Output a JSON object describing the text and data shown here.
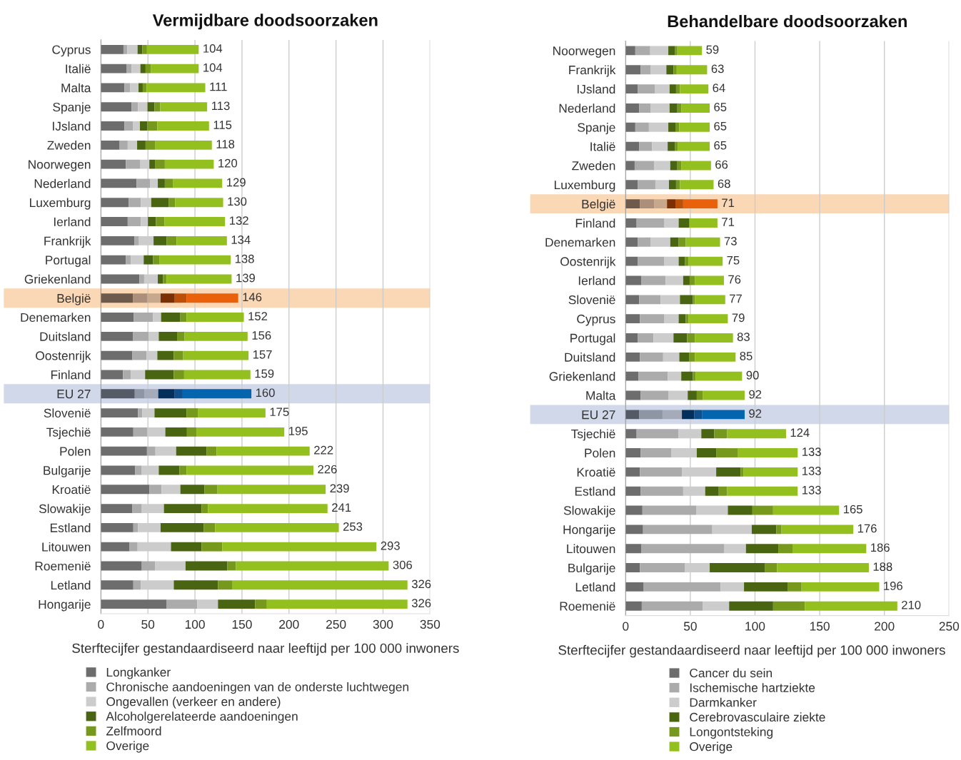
{
  "chart_data": [
    {
      "type": "bar",
      "orientation": "horizontal",
      "stacked": true,
      "title": "Vermijdbare doodsoorzaken",
      "xlabel": "Sterftecijfer gestandaardiseerd naar leeftijd per 100 000 inwoners",
      "categories": [
        "Cyprus",
        "Italië",
        "Malta",
        "Spanje",
        "IJsland",
        "Zweden",
        "Noorwegen",
        "Nederland",
        "Luxemburg",
        "Ierland",
        "Frankrijk",
        "Portugal",
        "Griekenland",
        "België",
        "Denemarken",
        "Duitsland",
        "Oostenrijk",
        "Finland",
        "EU 27",
        "Slovenië",
        "Tsjechië",
        "Polen",
        "Bulgarije",
        "Kroatië",
        "Slowakije",
        "Estland",
        "Litouwen",
        "Roemenië",
        "Letland",
        "Hongarije"
      ],
      "series": [
        {
          "name": "Longkanker",
          "colors": [
            "#6d6d6d",
            "#6d6d6d",
            "#6d6d6d",
            "#6d6d6d",
            "#6d6d6d",
            "#6d6d6d",
            "#6d6d6d",
            "#6d6d6d",
            "#6d6d6d",
            "#6d6d6d",
            "#6d6d6d",
            "#6d6d6d",
            "#6d6d6d",
            "#6e5a4c",
            "#6d6d6d",
            "#6d6d6d",
            "#6d6d6d",
            "#6d6d6d",
            "#545a66",
            "#6d6d6d",
            "#6d6d6d",
            "#6d6d6d",
            "#6d6d6d",
            "#6d6d6d",
            "#6d6d6d",
            "#6d6d6d",
            "#6d6d6d",
            "#6d6d6d",
            "#6d6d6d",
            "#6d6d6d"
          ],
          "values": [
            24,
            27.5,
            25,
            32.5,
            25,
            19.5,
            26.5,
            38,
            29.5,
            28.5,
            35.5,
            26.5,
            41,
            34,
            35,
            34,
            33.5,
            23.5,
            36,
            39.5,
            34.5,
            49,
            36.5,
            51.5,
            33.5,
            34.5,
            30.5,
            43.5,
            34.5,
            70
          ]
        },
        {
          "name": "Chronische aandoeningen van de onderste luchtwegen",
          "colors": [
            "#ababab",
            "#ababab",
            "#ababab",
            "#ababab",
            "#ababab",
            "#ababab",
            "#ababab",
            "#ababab",
            "#ababab",
            "#ababab",
            "#ababab",
            "#ababab",
            "#ababab",
            "#ab8f7a",
            "#ababab",
            "#ababab",
            "#ababab",
            "#ababab",
            "#8e95a3",
            "#ababab",
            "#ababab",
            "#ababab",
            "#ababab",
            "#ababab",
            "#ababab",
            "#ababab",
            "#ababab",
            "#ababab",
            "#ababab",
            "#ababab"
          ],
          "values": [
            4,
            5,
            6,
            7,
            9,
            9,
            15,
            14.5,
            13,
            14,
            5,
            5.5,
            5,
            15.5,
            20.5,
            17,
            15,
            8.5,
            10.5,
            4.5,
            15,
            9,
            7,
            13,
            10,
            5,
            8.5,
            14,
            8,
            32.5
          ]
        },
        {
          "name": "Ongevallen (verkeer en andere)",
          "colors": [
            "#cccccc",
            "#cccccc",
            "#cccccc",
            "#cccccc",
            "#cccccc",
            "#cccccc",
            "#cccccc",
            "#cccccc",
            "#cccccc",
            "#cccccc",
            "#cccccc",
            "#cccccc",
            "#cccccc",
            "#c6a88c",
            "#cccccc",
            "#cccccc",
            "#cccccc",
            "#cccccc",
            "#a5abb8",
            "#cccccc",
            "#cccccc",
            "#cccccc",
            "#cccccc",
            "#cccccc",
            "#cccccc",
            "#cccccc",
            "#cccccc",
            "#cccccc",
            "#cccccc",
            "#cccccc"
          ],
          "values": [
            11,
            9.5,
            9,
            10,
            7.5,
            10,
            10,
            8,
            11,
            7.5,
            15.5,
            13.5,
            14.5,
            14,
            8.5,
            10.5,
            11.5,
            15,
            14.5,
            13,
            19,
            22,
            18,
            20,
            23.5,
            24,
            35.5,
            32.5,
            35,
            22
          ]
        },
        {
          "name": "Alcoholgerelateerde aandoeningen",
          "colors": [
            "#4a6512",
            "#4a6512",
            "#4a6512",
            "#4a6512",
            "#4a6512",
            "#4a6512",
            "#4a6512",
            "#4a6512",
            "#4a6512",
            "#4a6512",
            "#4a6512",
            "#4a6512",
            "#4a6512",
            "#7b3003",
            "#4a6512",
            "#4a6512",
            "#4a6512",
            "#4a6512",
            "#03305a",
            "#4a6512",
            "#4a6512",
            "#4a6512",
            "#4a6512",
            "#4a6512",
            "#4a6512",
            "#4a6512",
            "#4a6512",
            "#4a6512",
            "#4a6512",
            "#4a6512"
          ],
          "values": [
            5,
            5.5,
            4.5,
            7.5,
            8,
            9,
            6,
            7.5,
            18.5,
            8.5,
            14,
            10,
            5.5,
            15,
            20.5,
            19.5,
            17.5,
            30.5,
            17.5,
            34,
            23,
            32.5,
            22,
            25.5,
            40,
            46,
            32.5,
            44.5,
            47,
            39.5
          ]
        },
        {
          "name": "Zelfmoord",
          "colors": [
            "#76991d",
            "#76991d",
            "#76991d",
            "#76991d",
            "#76991d",
            "#76991d",
            "#76991d",
            "#76991d",
            "#76991d",
            "#76991d",
            "#76991d",
            "#76991d",
            "#76991d",
            "#bd5008",
            "#76991d",
            "#76991d",
            "#76991d",
            "#76991d",
            "#0e4f8c",
            "#76991d",
            "#76991d",
            "#76991d",
            "#76991d",
            "#76991d",
            "#76991d",
            "#76991d",
            "#76991d",
            "#76991d",
            "#76991d",
            "#76991d"
          ],
          "values": [
            5,
            5.5,
            4,
            6,
            10.5,
            10,
            10.5,
            8.5,
            7,
            9,
            10.5,
            7,
            4,
            12.5,
            6.5,
            8,
            10,
            11,
            8.5,
            12.5,
            10.5,
            10.5,
            7.5,
            14,
            7,
            12,
            22,
            9,
            15.5,
            12.5
          ]
        },
        {
          "name": "Overige",
          "colors": [
            "#93c01f",
            "#93c01f",
            "#93c01f",
            "#93c01f",
            "#93c01f",
            "#93c01f",
            "#93c01f",
            "#93c01f",
            "#93c01f",
            "#93c01f",
            "#93c01f",
            "#93c01f",
            "#93c01f",
            "#e9620b",
            "#93c01f",
            "#93c01f",
            "#93c01f",
            "#93c01f",
            "#0465ae",
            "#93c01f",
            "#93c01f",
            "#93c01f",
            "#93c01f",
            "#93c01f",
            "#93c01f",
            "#93c01f",
            "#93c01f",
            "#93c01f",
            "#93c01f",
            "#93c01f"
          ],
          "values": [
            55,
            51,
            62.5,
            50,
            55,
            60.5,
            52,
            52.5,
            51,
            64.5,
            53.5,
            75.5,
            69,
            55,
            61,
            67,
            69.5,
            70.5,
            73,
            71.5,
            93,
            99,
            135,
            115,
            127,
            131.5,
            164,
            162.5,
            186,
            149.5
          ]
        }
      ],
      "totals": [
        "104",
        "104",
        "111",
        "113",
        "115",
        "118",
        "120",
        "129",
        "130",
        "132",
        "134",
        "138",
        "139",
        "146",
        "152",
        "156",
        "157",
        "159",
        "160",
        "175",
        "195",
        "222",
        "226",
        "239",
        "241",
        "253",
        "293",
        "306",
        "326",
        "326"
      ],
      "bands": [
        {
          "axis": "y",
          "from": "België",
          "to": "België",
          "color": "#fad7b5"
        },
        {
          "axis": "y",
          "from": "EU 27",
          "to": "EU 27",
          "color": "#d1d8ea"
        }
      ],
      "xlim": [
        0,
        350
      ],
      "xticks": [
        0,
        50,
        100,
        150,
        200,
        250,
        300,
        350
      ],
      "grid": "x",
      "legend": "bottom"
    },
    {
      "type": "bar",
      "orientation": "horizontal",
      "stacked": true,
      "title": "Behandelbare doodsoorzaken",
      "xlabel": "Sterftecijfer gestandaardiseerd naar leeftijd per 100 000 inwoners",
      "categories": [
        "Noorwegen",
        "Frankrijk",
        "IJsland",
        "Nederland",
        "Spanje",
        "Italië",
        "Zweden",
        "Luxemburg",
        "België",
        "Finland",
        "Denemarken",
        "Oostenrijk",
        "Ierland",
        "Slovenië",
        "Cyprus",
        "Portugal",
        "Duitsland",
        "Griekenland",
        "Malta",
        "EU 27",
        "Tsjechië",
        "Polen",
        "Kroatië",
        "Estland",
        "Slowakije",
        "Hongarije",
        "Litouwen",
        "Bulgarije",
        "Letland",
        "Roemenië"
      ],
      "series": [
        {
          "name": "Cancer du sein",
          "colors": [
            "#6d6d6d",
            "#6d6d6d",
            "#6d6d6d",
            "#6d6d6d",
            "#6d6d6d",
            "#6d6d6d",
            "#6d6d6d",
            "#6d6d6d",
            "#6e5a4c",
            "#6d6d6d",
            "#6d6d6d",
            "#6d6d6d",
            "#6d6d6d",
            "#6d6d6d",
            "#6d6d6d",
            "#6d6d6d",
            "#6d6d6d",
            "#6d6d6d",
            "#6d6d6d",
            "#545a66",
            "#6d6d6d",
            "#6d6d6d",
            "#6d6d6d",
            "#6d6d6d",
            "#6d6d6d",
            "#6d6d6d",
            "#6d6d6d",
            "#6d6d6d",
            "#6d6d6d",
            "#6d6d6d"
          ],
          "values": [
            7.5,
            11.5,
            9.5,
            10.5,
            7.5,
            10.5,
            7,
            9.5,
            11,
            8.5,
            9.5,
            9.5,
            12,
            10.5,
            11,
            9.5,
            11,
            10,
            11.5,
            10.5,
            8.5,
            11.5,
            11,
            11.5,
            13,
            13.5,
            12,
            11,
            14,
            12.5
          ]
        },
        {
          "name": "Ischemische hartziekte",
          "colors": [
            "#ababab",
            "#ababab",
            "#ababab",
            "#ababab",
            "#ababab",
            "#ababab",
            "#ababab",
            "#ababab",
            "#ab8f7a",
            "#ababab",
            "#ababab",
            "#ababab",
            "#ababab",
            "#ababab",
            "#ababab",
            "#ababab",
            "#ababab",
            "#ababab",
            "#ababab",
            "#8e95a3",
            "#ababab",
            "#ababab",
            "#ababab",
            "#ababab",
            "#ababab",
            "#ababab",
            "#ababab",
            "#ababab",
            "#ababab",
            "#ababab"
          ],
          "values": [
            11.5,
            8,
            13,
            9,
            10.5,
            10,
            15,
            13.5,
            11,
            21.5,
            10,
            20.5,
            19,
            16.5,
            19,
            12,
            18,
            22.5,
            21.5,
            18,
            32.5,
            24,
            32.5,
            33,
            41.5,
            53.5,
            64,
            35,
            59.5,
            47
          ]
        },
        {
          "name": "Darmkanker",
          "colors": [
            "#cccccc",
            "#cccccc",
            "#cccccc",
            "#cccccc",
            "#cccccc",
            "#cccccc",
            "#cccccc",
            "#cccccc",
            "#c6a88c",
            "#cccccc",
            "#cccccc",
            "#cccccc",
            "#cccccc",
            "#cccccc",
            "#cccccc",
            "#cccccc",
            "#cccccc",
            "#cccccc",
            "#cccccc",
            "#a5abb8",
            "#cccccc",
            "#cccccc",
            "#cccccc",
            "#cccccc",
            "#cccccc",
            "#cccccc",
            "#cccccc",
            "#cccccc",
            "#cccccc",
            "#cccccc"
          ],
          "values": [
            14,
            12,
            11.5,
            14.5,
            15,
            12,
            12.5,
            10.5,
            10,
            11,
            15,
            11,
            13.5,
            15,
            11,
            15.5,
            12.5,
            10.5,
            15,
            15,
            17.5,
            19.5,
            26.5,
            17,
            24.5,
            30.5,
            17,
            19,
            18,
            20.5
          ]
        },
        {
          "name": "Cerebrovasculaire ziekte",
          "colors": [
            "#4a6512",
            "#4a6512",
            "#4a6512",
            "#4a6512",
            "#4a6512",
            "#4a6512",
            "#4a6512",
            "#4a6512",
            "#7b3003",
            "#4a6512",
            "#4a6512",
            "#4a6512",
            "#4a6512",
            "#4a6512",
            "#4a6512",
            "#4a6512",
            "#4a6512",
            "#4a6512",
            "#4a6512",
            "#03305a",
            "#4a6512",
            "#4a6512",
            "#4a6512",
            "#4a6512",
            "#4a6512",
            "#4a6512",
            "#4a6512",
            "#4a6512",
            "#4a6512",
            "#4a6512"
          ],
          "values": [
            5,
            5.5,
            5,
            6,
            5.5,
            5.5,
            5.5,
            5.5,
            6.5,
            8,
            6.5,
            5,
            5,
            10,
            5.5,
            10.5,
            7.5,
            9,
            7,
            9.5,
            10,
            15,
            19,
            10.5,
            19,
            19,
            25,
            42.5,
            34,
            34
          ]
        },
        {
          "name": "Longontsteking",
          "colors": [
            "#76991d",
            "#76991d",
            "#76991d",
            "#76991d",
            "#76991d",
            "#76991d",
            "#76991d",
            "#76991d",
            "#bd5008",
            "#76991d",
            "#76991d",
            "#76991d",
            "#76991d",
            "#76991d",
            "#76991d",
            "#76991d",
            "#76991d",
            "#76991d",
            "#76991d",
            "#0e4f8c",
            "#76991d",
            "#76991d",
            "#76991d",
            "#76991d",
            "#76991d",
            "#76991d",
            "#76991d",
            "#76991d",
            "#76991d",
            "#76991d"
          ],
          "values": [
            2,
            2.5,
            3,
            3,
            3,
            2.5,
            3,
            3,
            6,
            0.5,
            5.5,
            2.5,
            4,
            1.5,
            2,
            6,
            4.5,
            2,
            4.5,
            6,
            10,
            16.5,
            2,
            6.5,
            16,
            4,
            11,
            9.5,
            10.5,
            24.5
          ]
        },
        {
          "name": "Overige",
          "colors": [
            "#93c01f",
            "#93c01f",
            "#93c01f",
            "#93c01f",
            "#93c01f",
            "#93c01f",
            "#93c01f",
            "#93c01f",
            "#e9620b",
            "#93c01f",
            "#93c01f",
            "#93c01f",
            "#93c01f",
            "#93c01f",
            "#93c01f",
            "#93c01f",
            "#93c01f",
            "#93c01f",
            "#93c01f",
            "#0465ae",
            "#93c01f",
            "#93c01f",
            "#93c01f",
            "#93c01f",
            "#93c01f",
            "#93c01f",
            "#93c01f",
            "#93c01f",
            "#93c01f",
            "#93c01f"
          ],
          "values": [
            19,
            23.5,
            22,
            22,
            23.5,
            24.5,
            23,
            26,
            26.5,
            21.5,
            26.5,
            26.5,
            22.5,
            23.5,
            30.5,
            29.5,
            31.5,
            36,
            32.5,
            33,
            45.5,
            46.5,
            42,
            54.5,
            51,
            55.5,
            57,
            71,
            60,
            71.5
          ]
        }
      ],
      "totals": [
        "59",
        "63",
        "64",
        "65",
        "65",
        "65",
        "66",
        "68",
        "71",
        "71",
        "73",
        "75",
        "76",
        "77",
        "79",
        "83",
        "85",
        "90",
        "92",
        "92",
        "124",
        "133",
        "133",
        "133",
        "165",
        "176",
        "186",
        "188",
        "196",
        "210"
      ],
      "bands": [
        {
          "axis": "y",
          "from": "België",
          "to": "België",
          "color": "#fad7b5"
        },
        {
          "axis": "y",
          "from": "EU 27",
          "to": "EU 27",
          "color": "#d1d8ea"
        }
      ],
      "xlim": [
        0,
        250
      ],
      "xticks": [
        0,
        50,
        100,
        150,
        200,
        250
      ],
      "grid": "x",
      "legend": "bottom"
    }
  ]
}
